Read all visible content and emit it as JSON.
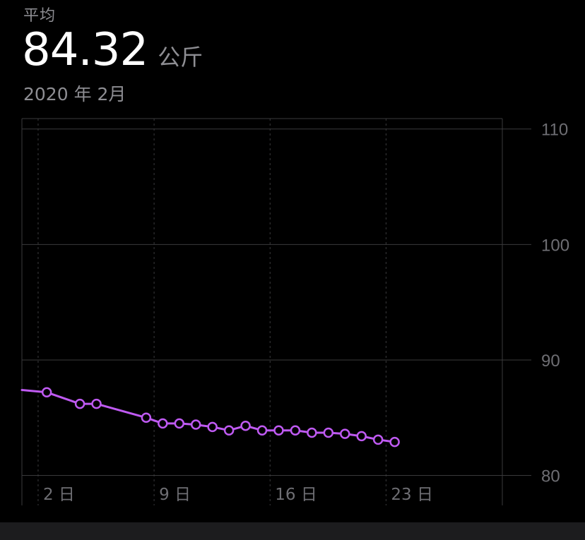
{
  "header": {
    "label": "平均",
    "value": "84.32",
    "unit": "公斤",
    "period": "2020 年 2月"
  },
  "colors": {
    "background": "#000000",
    "series": "#bf5af2",
    "grid": "#3a3a3c",
    "tick_text": "#6e6e73",
    "secondary_text": "#8e8e93",
    "bottom_bar": "#1c1c1e"
  },
  "chart_data": {
    "type": "line",
    "title": "",
    "xlabel": "",
    "ylabel": "",
    "x_ticks": [
      {
        "day": 2,
        "label": "2 日"
      },
      {
        "day": 9,
        "label": "9 日"
      },
      {
        "day": 16,
        "label": "16 日"
      },
      {
        "day": 23,
        "label": "23 日"
      }
    ],
    "y_ticks": [
      110,
      100,
      90,
      80
    ],
    "xlim": [
      1,
      30
    ],
    "ylim": [
      79.3,
      110.9
    ],
    "y_axis_position": "right",
    "grid": true,
    "series": [
      {
        "line_start": {
          "x": 1,
          "y": 87.4
        },
        "points": [
          {
            "x": 2.5,
            "y": 87.2
          },
          {
            "x": 4.5,
            "y": 86.2
          },
          {
            "x": 5.5,
            "y": 86.2
          },
          {
            "x": 8.5,
            "y": 85.0
          },
          {
            "x": 9.5,
            "y": 84.5
          },
          {
            "x": 10.5,
            "y": 84.5
          },
          {
            "x": 11.5,
            "y": 84.4
          },
          {
            "x": 12.5,
            "y": 84.2
          },
          {
            "x": 13.5,
            "y": 83.9
          },
          {
            "x": 14.5,
            "y": 84.3
          },
          {
            "x": 15.5,
            "y": 83.9
          },
          {
            "x": 16.5,
            "y": 83.9
          },
          {
            "x": 17.5,
            "y": 83.9
          },
          {
            "x": 18.5,
            "y": 83.7
          },
          {
            "x": 19.5,
            "y": 83.7
          },
          {
            "x": 20.5,
            "y": 83.6
          },
          {
            "x": 21.5,
            "y": 83.4
          },
          {
            "x": 22.5,
            "y": 83.1
          },
          {
            "x": 23.5,
            "y": 82.9
          }
        ]
      }
    ]
  }
}
